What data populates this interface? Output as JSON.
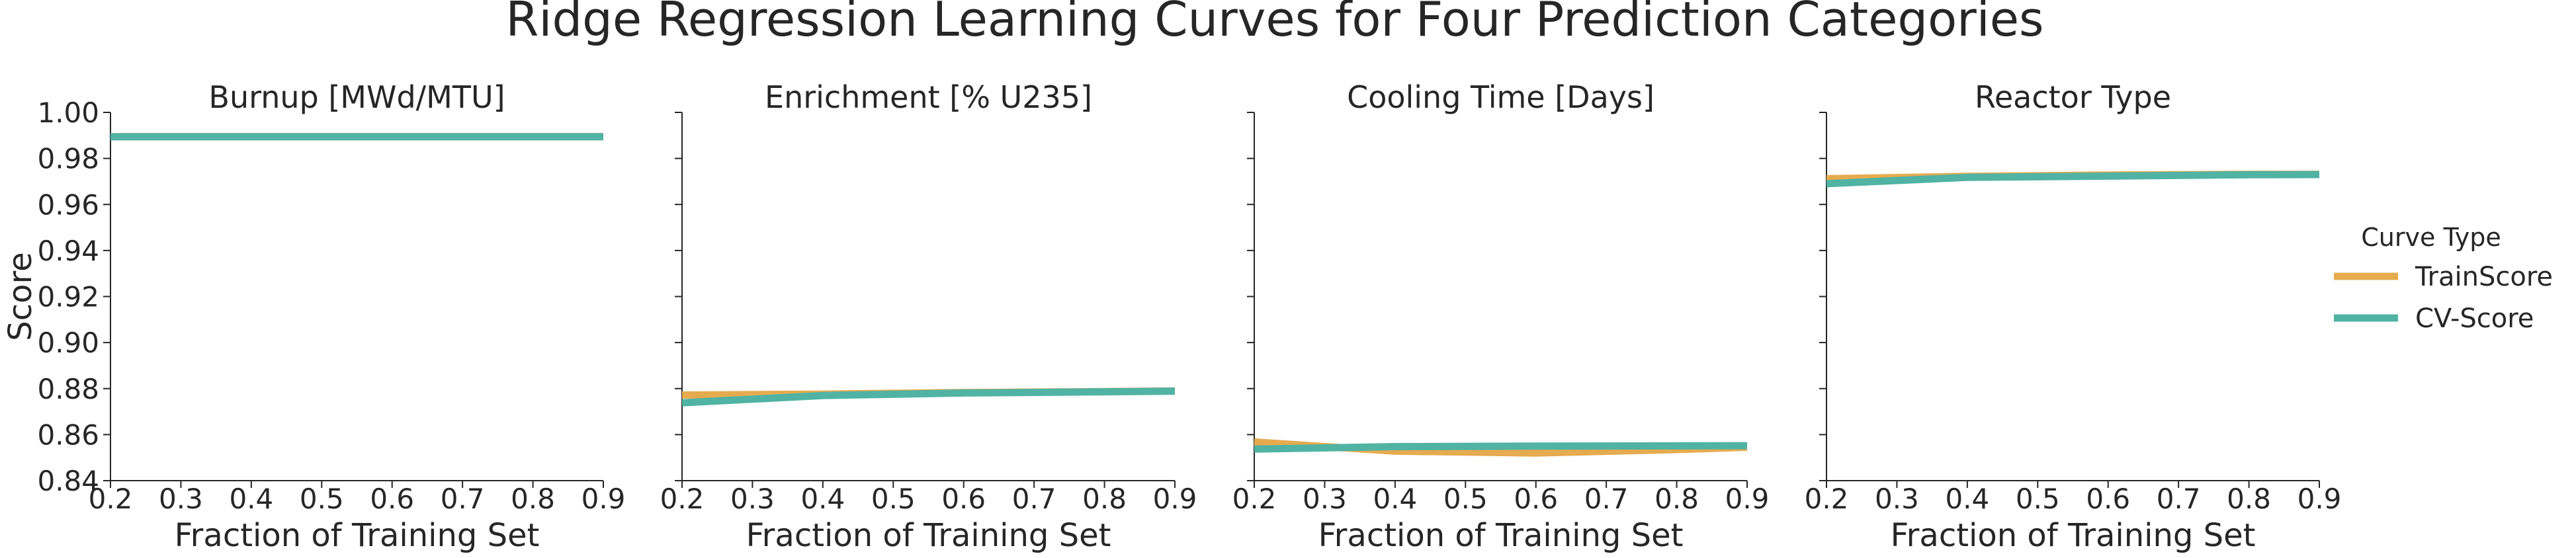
{
  "figure": {
    "title": "Ridge Regression Learning Curves for Four Prediction Categories"
  },
  "legend": {
    "title": "Curve Type",
    "placement": "right",
    "items": [
      {
        "label": "TrainScore",
        "color": "#E6AB4F"
      },
      {
        "label": "CV-Score",
        "color": "#50B3A4"
      }
    ]
  },
  "chart_data": [
    {
      "type": "line",
      "title": "Burnup [MWd/MTU]",
      "xlabel": "Fraction of Training Set",
      "ylabel": "Score",
      "xlim": [
        0.2,
        0.9
      ],
      "ylim": [
        0.84,
        1.0
      ],
      "xticks": [
        "0.2",
        "0.3",
        "0.4",
        "0.5",
        "0.6",
        "0.7",
        "0.8",
        "0.9"
      ],
      "yticks": [
        "0.84",
        "0.86",
        "0.88",
        "0.90",
        "0.92",
        "0.94",
        "0.96",
        "0.98",
        "1.00"
      ],
      "grid": false,
      "x": [
        0.2,
        0.4,
        0.6,
        0.8,
        0.9
      ],
      "series": [
        {
          "name": "TrainScore",
          "values": [
            0.9895,
            0.9895,
            0.9895,
            0.9895,
            0.9895
          ]
        },
        {
          "name": "CV-Score",
          "values": [
            0.9894,
            0.9894,
            0.9894,
            0.9894,
            0.9894
          ]
        }
      ]
    },
    {
      "type": "line",
      "title": "Enrichment [% U235]",
      "xlabel": "Fraction of Training Set",
      "xlim": [
        0.2,
        0.9
      ],
      "ylim": [
        0.84,
        1.0
      ],
      "xticks": [
        "0.2",
        "0.3",
        "0.4",
        "0.5",
        "0.6",
        "0.7",
        "0.8",
        "0.9"
      ],
      "grid": false,
      "x": [
        0.2,
        0.4,
        0.6,
        0.8,
        0.9
      ],
      "series": [
        {
          "name": "TrainScore",
          "values": [
            0.8772,
            0.8776,
            0.8783,
            0.8787,
            0.879
          ]
        },
        {
          "name": "CV-Score",
          "values": [
            0.8738,
            0.877,
            0.8781,
            0.8786,
            0.8789
          ]
        }
      ]
    },
    {
      "type": "line",
      "title": "Cooling Time [Days]",
      "xlabel": "Fraction of Training Set",
      "xlim": [
        0.2,
        0.9
      ],
      "ylim": [
        0.84,
        1.0
      ],
      "xticks": [
        "0.2",
        "0.3",
        "0.4",
        "0.5",
        "0.6",
        "0.7",
        "0.8",
        "0.9"
      ],
      "grid": false,
      "x": [
        0.2,
        0.4,
        0.6,
        0.8,
        0.9
      ],
      "series": [
        {
          "name": "TrainScore",
          "values": [
            0.8568,
            0.8528,
            0.852,
            0.8535,
            0.8545
          ]
        },
        {
          "name": "CV-Score",
          "values": [
            0.8537,
            0.8548,
            0.855,
            0.8551,
            0.8552
          ]
        }
      ]
    },
    {
      "type": "line",
      "title": "Reactor Type",
      "xlabel": "Fraction of Training Set",
      "xlim": [
        0.2,
        0.9
      ],
      "ylim": [
        0.84,
        1.0
      ],
      "xticks": [
        "0.2",
        "0.3",
        "0.4",
        "0.5",
        "0.6",
        "0.7",
        "0.8",
        "0.9"
      ],
      "grid": false,
      "x": [
        0.2,
        0.4,
        0.6,
        0.8,
        0.9
      ],
      "series": [
        {
          "name": "TrainScore",
          "values": [
            0.9712,
            0.9722,
            0.9728,
            0.9731,
            0.9731
          ]
        },
        {
          "name": "CV-Score",
          "values": [
            0.969,
            0.9718,
            0.9723,
            0.9729,
            0.973
          ]
        }
      ]
    }
  ]
}
